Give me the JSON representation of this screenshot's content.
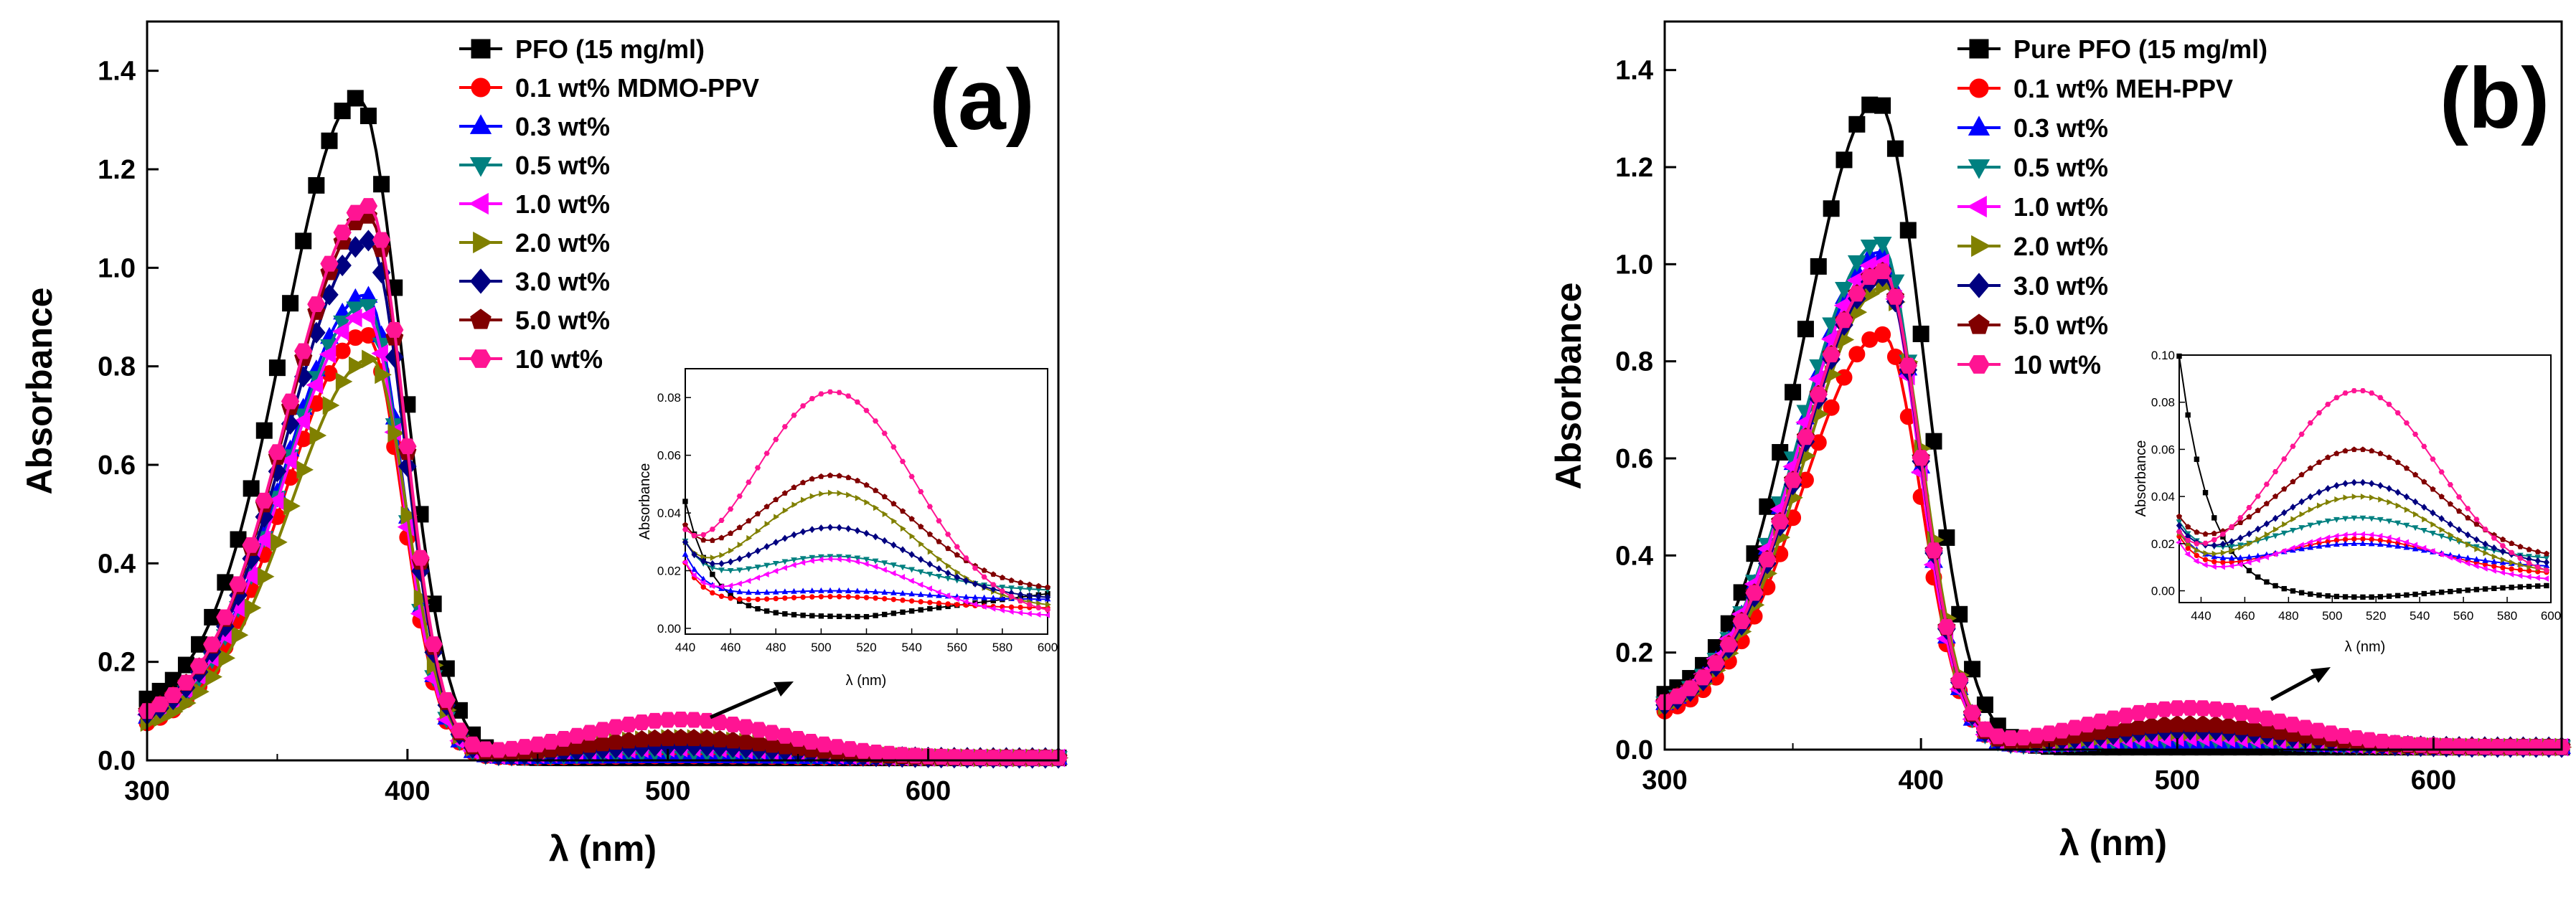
{
  "chart_data": [
    {
      "panel": "(a)",
      "type": "line",
      "xlabel": "λ (nm)",
      "ylabel": "Absorbance",
      "xlim": [
        300,
        650
      ],
      "ylim": [
        0,
        1.5
      ],
      "xticks": [
        "300",
        "400",
        "500",
        "600"
      ],
      "yticks": [
        "0.0",
        "0.2",
        "0.4",
        "0.6",
        "0.8",
        "1.0",
        "1.2",
        "1.4"
      ],
      "legend": "top-right",
      "series": [
        {
          "name": "PFO (15 mg/ml)",
          "color": "#000000",
          "marker": "square",
          "peak": 1.34,
          "center": 381,
          "base": 0.18,
          "sigma_left": 28,
          "sigma_right": 17,
          "band": 0.0
        },
        {
          "name": "0.1 wt% MDMO-PPV",
          "color": "#ff0000",
          "marker": "circle",
          "peak": 0.86,
          "center": 384,
          "base": 0.1,
          "sigma_left": 30,
          "sigma_right": 14,
          "band": 0.004
        },
        {
          "name": "0.3 wt%",
          "color": "#0000ff",
          "marker": "triangle-up",
          "peak": 0.94,
          "center": 384,
          "base": 0.12,
          "sigma_left": 30,
          "sigma_right": 14,
          "band": 0.003
        },
        {
          "name": "0.5 wt%",
          "color": "#008080",
          "marker": "triangle-down",
          "peak": 0.92,
          "center": 384,
          "base": 0.12,
          "sigma_left": 30,
          "sigma_right": 14,
          "band": 0.012
        },
        {
          "name": "1.0 wt%",
          "color": "#ff00ff",
          "marker": "triangle-left",
          "peak": 0.9,
          "center": 384,
          "base": 0.13,
          "sigma_left": 30,
          "sigma_right": 14,
          "band": 0.02
        },
        {
          "name": "2.0 wt%",
          "color": "#808000",
          "marker": "triangle-right",
          "peak": 0.81,
          "center": 386,
          "base": 0.11,
          "sigma_left": 30,
          "sigma_right": 14,
          "band": 0.04
        },
        {
          "name": "3.0 wt%",
          "color": "#000080",
          "marker": "diamond",
          "peak": 1.05,
          "center": 385,
          "base": 0.13,
          "sigma_left": 30,
          "sigma_right": 14,
          "band": 0.025
        },
        {
          "name": "5.0 wt%",
          "color": "#800000",
          "marker": "pentagon",
          "peak": 1.1,
          "center": 385,
          "base": 0.14,
          "sigma_left": 30,
          "sigma_right": 14,
          "band": 0.04
        },
        {
          "name": "10 wt%",
          "color": "#ff1493",
          "marker": "hexagon",
          "peak": 1.12,
          "center": 385,
          "base": 0.14,
          "sigma_left": 30,
          "sigma_right": 14,
          "band": 0.078
        }
      ],
      "inset": {
        "xlabel": "λ (nm)",
        "ylabel": "Absorbance",
        "xlim": [
          440,
          600
        ],
        "ylim": [
          -0.002,
          0.09
        ],
        "xticks": [
          "440",
          "460",
          "480",
          "500",
          "520",
          "540",
          "560",
          "580",
          "600"
        ],
        "yticks": [
          "0.00",
          "0.02",
          "0.04",
          "0.06",
          "0.08"
        ]
      },
      "annotation": "arrow from the ~500 nm band toward the inset"
    },
    {
      "panel": "(b)",
      "type": "line",
      "xlabel": "λ (nm)",
      "ylabel": "Absorbance",
      "xlim": [
        300,
        650
      ],
      "ylim": [
        0,
        1.5
      ],
      "xticks": [
        "300",
        "400",
        "500",
        "600"
      ],
      "yticks": [
        "0.0",
        "0.2",
        "0.4",
        "0.6",
        "0.8",
        "1.0",
        "1.2",
        "1.4"
      ],
      "legend": "top-right",
      "series": [
        {
          "name": "Pure PFO (15 mg/ml)",
          "color": "#000000",
          "marker": "square",
          "peak": 1.33,
          "center": 383,
          "base": 0.17,
          "sigma_left": 28,
          "sigma_right": 18,
          "band": 0.0
        },
        {
          "name": "0.1 wt% MEH-PPV",
          "color": "#ff0000",
          "marker": "circle",
          "peak": 0.85,
          "center": 385,
          "base": 0.11,
          "sigma_left": 30,
          "sigma_right": 15,
          "band": 0.015
        },
        {
          "name": "0.3 wt%",
          "color": "#0000ff",
          "marker": "triangle-up",
          "peak": 1.02,
          "center": 384,
          "base": 0.13,
          "sigma_left": 30,
          "sigma_right": 15,
          "band": 0.01
        },
        {
          "name": "0.5 wt%",
          "color": "#008080",
          "marker": "triangle-down",
          "peak": 1.04,
          "center": 384,
          "base": 0.13,
          "sigma_left": 30,
          "sigma_right": 15,
          "band": 0.018
        },
        {
          "name": "1.0 wt%",
          "color": "#ff00ff",
          "marker": "triangle-left",
          "peak": 1.0,
          "center": 384,
          "base": 0.14,
          "sigma_left": 30,
          "sigma_right": 15,
          "band": 0.02
        },
        {
          "name": "2.0 wt%",
          "color": "#808000",
          "marker": "triangle-right",
          "peak": 0.95,
          "center": 386,
          "base": 0.13,
          "sigma_left": 30,
          "sigma_right": 15,
          "band": 0.033
        },
        {
          "name": "3.0 wt%",
          "color": "#000080",
          "marker": "diamond",
          "peak": 0.97,
          "center": 385,
          "base": 0.13,
          "sigma_left": 30,
          "sigma_right": 15,
          "band": 0.036
        },
        {
          "name": "5.0 wt%",
          "color": "#800000",
          "marker": "pentagon",
          "peak": 0.98,
          "center": 385,
          "base": 0.14,
          "sigma_left": 30,
          "sigma_right": 15,
          "band": 0.047
        },
        {
          "name": "10 wt%",
          "color": "#ff1493",
          "marker": "hexagon",
          "peak": 0.98,
          "center": 385,
          "base": 0.14,
          "sigma_left": 30,
          "sigma_right": 15,
          "band": 0.081
        }
      ],
      "inset": {
        "xlabel": "λ (nm)",
        "ylabel": "Absorbance",
        "xlim": [
          430,
          600
        ],
        "ylim": [
          -0.005,
          0.1
        ],
        "xticks": [
          "440",
          "460",
          "480",
          "500",
          "520",
          "540",
          "560",
          "580",
          "600"
        ],
        "yticks": [
          "0.00",
          "0.02",
          "0.04",
          "0.06",
          "0.08",
          "0.10"
        ]
      },
      "annotation": "arrow from the ~520 nm band toward the inset"
    }
  ]
}
